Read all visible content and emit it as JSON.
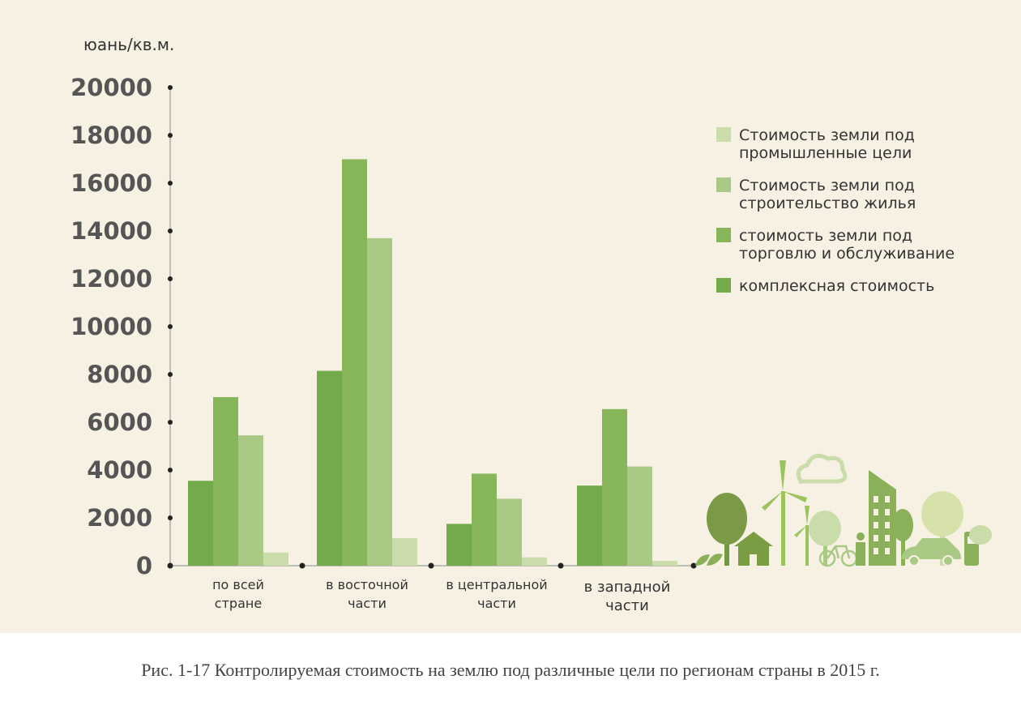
{
  "chart_data": {
    "type": "bar",
    "ylabel": "юань/кв.м.",
    "ylim": [
      0,
      20000
    ],
    "yticks": [
      0,
      2000,
      4000,
      6000,
      8000,
      10000,
      12000,
      14000,
      16000,
      18000,
      20000
    ],
    "categories": [
      [
        "по всей",
        "стране"
      ],
      [
        "в восточной",
        "части"
      ],
      [
        "в центральной",
        "части"
      ],
      [
        "в западной",
        "части"
      ]
    ],
    "series": [
      {
        "name": "комплексная стоимость",
        "color": "#74ab4a",
        "values": [
          3550,
          8150,
          1750,
          3350
        ]
      },
      {
        "name": "стоимость земли под торговлю и обслуживание",
        "color": "#86b55a",
        "values": [
          7050,
          17000,
          3850,
          6550
        ]
      },
      {
        "name": "Стоимость земли под строительство жилья",
        "color": "#a9c985",
        "values": [
          5450,
          13700,
          2800,
          4150
        ]
      },
      {
        "name": "Стоимость земли под промышленные цели",
        "color": "#c9dca9",
        "values": [
          550,
          1150,
          350,
          200
        ]
      }
    ],
    "legend": {
      "position": "top-right",
      "entries": [
        {
          "lines": [
            "Стоимость земли под",
            "промышленные цели"
          ],
          "color": "#c9dca9"
        },
        {
          "lines": [
            "Стоимость земли под",
            "строительство жилья"
          ],
          "color": "#a9c985"
        },
        {
          "lines": [
            "стоимость земли под",
            "торговлю и обслуживание"
          ],
          "color": "#86b55a"
        },
        {
          "lines": [
            "комплексная стоимость"
          ],
          "color": "#74ab4a"
        }
      ]
    },
    "grid": false
  },
  "caption": "Рис. 1-17 Контролируемая стоимость на землю под различные цели по регионам страны в 2015 г."
}
